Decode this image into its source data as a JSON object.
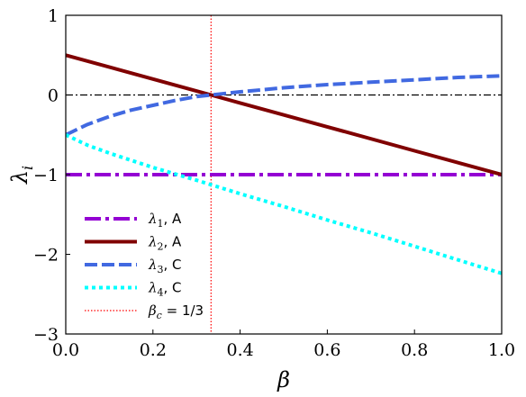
{
  "chart_data": {
    "type": "line",
    "xlabel": "β",
    "ylabel": "λ",
    "ylabel_sub": "i",
    "xlim": [
      0,
      1
    ],
    "ylim": [
      -3,
      1
    ],
    "xticks": [
      0.0,
      0.2,
      0.4,
      0.6,
      0.8,
      1.0
    ],
    "xtick_labels": [
      "0.0",
      "0.2",
      "0.4",
      "0.6",
      "0.8",
      "1.0"
    ],
    "yticks": [
      -3,
      -2,
      -1,
      0,
      1
    ],
    "ytick_labels": [
      "−3",
      "−2",
      "−1",
      "0",
      "1"
    ],
    "grid": false,
    "legend_position": "lower-left",
    "series": [
      {
        "name": "λ1, A",
        "sym": "λ",
        "sub": "1",
        "tag": ", A",
        "style": "dashdot",
        "color": "#9400D3",
        "x": [
          0.0,
          1.0
        ],
        "y": [
          -1.0,
          -1.0
        ]
      },
      {
        "name": "λ2, A",
        "sym": "λ",
        "sub": "2",
        "tag": ", A",
        "style": "solid",
        "color": "#800000",
        "x": [
          0.0,
          0.2,
          0.4,
          0.6,
          0.8,
          1.0
        ],
        "y": [
          0.5,
          0.2,
          -0.1,
          -0.4,
          -0.7,
          -1.0
        ]
      },
      {
        "name": "λ3, C",
        "sym": "λ",
        "sub": "3",
        "tag": ", C",
        "style": "dashed",
        "color": "#4169E1",
        "x": [
          0.0,
          0.05,
          0.1,
          0.15,
          0.2,
          0.25,
          0.3,
          0.333,
          0.4,
          0.5,
          0.6,
          0.7,
          0.8,
          0.9,
          1.0
        ],
        "y": [
          -0.5,
          -0.37,
          -0.27,
          -0.19,
          -0.13,
          -0.07,
          -0.02,
          0.0,
          0.04,
          0.09,
          0.13,
          0.16,
          0.19,
          0.22,
          0.24
        ]
      },
      {
        "name": "λ4, C",
        "sym": "λ",
        "sub": "4",
        "tag": ", C",
        "style": "dotted",
        "color": "#00FFFF",
        "x": [
          0.0,
          0.05,
          0.1,
          0.2,
          0.3,
          0.4,
          0.5,
          0.6,
          0.7,
          0.8,
          0.9,
          1.0
        ],
        "y": [
          -0.5,
          -0.63,
          -0.73,
          -0.91,
          -1.07,
          -1.24,
          -1.4,
          -1.57,
          -1.73,
          -1.9,
          -2.07,
          -2.24
        ]
      }
    ],
    "reference_line": {
      "name": "βc = 1/3",
      "sym": "β",
      "sub": "c",
      "tag": " = 1/3",
      "x": 0.3333,
      "color": "#FF0000",
      "style": "dotted"
    },
    "zero_line": {
      "y": 0,
      "color": "#000000",
      "style": "dashdot"
    }
  }
}
